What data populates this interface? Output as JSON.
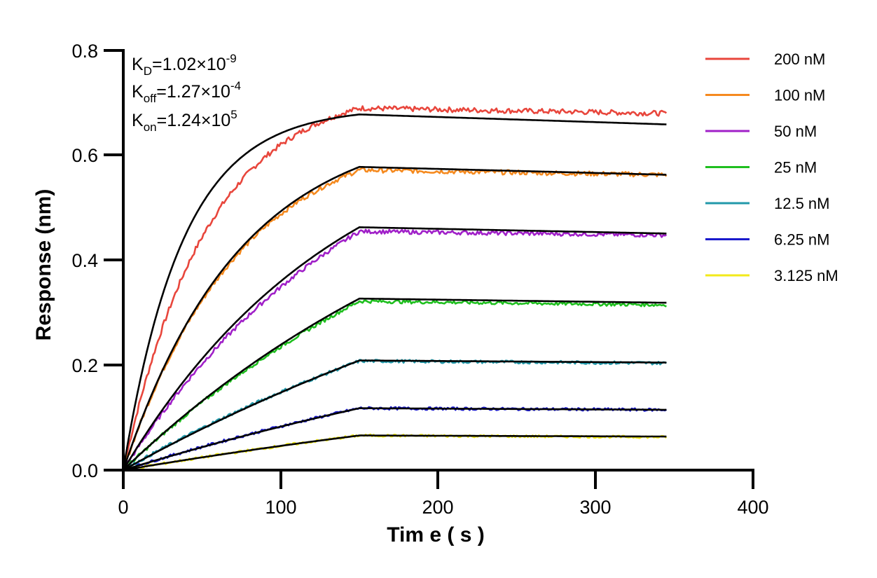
{
  "chart_data": {
    "type": "line",
    "xlabel": "Tim e ( s )",
    "ylabel": "Response (nm)",
    "xlim": [
      0,
      400
    ],
    "ylim": [
      0,
      0.8
    ],
    "xticks": [
      "0",
      "100",
      "200",
      "300",
      "400"
    ],
    "yticks": [
      "0.0",
      "0.2",
      "0.4",
      "0.6",
      "0.8"
    ],
    "legend_position": "top-right",
    "grid": false,
    "association_end": 150,
    "dissociation_end": 345,
    "fit_color": "#000000",
    "annotations": [
      {
        "label": "K",
        "sub": "D",
        "value": "=1.02×10",
        "exp": "-9"
      },
      {
        "label": "K",
        "sub": "off",
        "value": "=1.27×10",
        "exp": "-4"
      },
      {
        "label": "K",
        "sub": "on",
        "value": "=1.24×10",
        "exp": "5"
      }
    ],
    "series": [
      {
        "name": "200 nM",
        "color": "#e8463c",
        "peak": 0.69,
        "k_obs_data": 0.0185,
        "fit_peak": 0.678,
        "k_obs_fit": 0.0265,
        "end": 0.68,
        "fit_end": 0.659
      },
      {
        "name": "100 nM",
        "color": "#f58a1f",
        "peak": 0.572,
        "k_obs_data": 0.0135,
        "fit_peak": 0.578,
        "k_obs_fit": 0.0135,
        "end": 0.563,
        "fit_end": 0.563
      },
      {
        "name": "50 nM",
        "color": "#a020c8",
        "peak": 0.455,
        "k_obs_data": 0.0065,
        "fit_peak": 0.463,
        "k_obs_fit": 0.0072,
        "end": 0.448,
        "fit_end": 0.451
      },
      {
        "name": "25 nM",
        "color": "#1fbf1f",
        "peak": 0.322,
        "k_obs_data": 0.004,
        "fit_peak": 0.327,
        "k_obs_fit": 0.004,
        "end": 0.315,
        "fit_end": 0.319
      },
      {
        "name": "12.5 nM",
        "color": "#2299aa",
        "peak": 0.208,
        "k_obs_data": 0.003,
        "fit_peak": 0.209,
        "k_obs_fit": 0.0025,
        "end": 0.204,
        "fit_end": 0.205
      },
      {
        "name": "6.25 nM",
        "color": "#1a1acc",
        "peak": 0.118,
        "k_obs_data": 0.0025,
        "fit_peak": 0.118,
        "k_obs_fit": 0.0022,
        "end": 0.115,
        "fit_end": 0.115
      },
      {
        "name": "3.125 nM",
        "color": "#f2ea1a",
        "peak": 0.066,
        "k_obs_data": 0.002,
        "fit_peak": 0.066,
        "k_obs_fit": 0.002,
        "end": 0.063,
        "fit_end": 0.064
      }
    ]
  }
}
